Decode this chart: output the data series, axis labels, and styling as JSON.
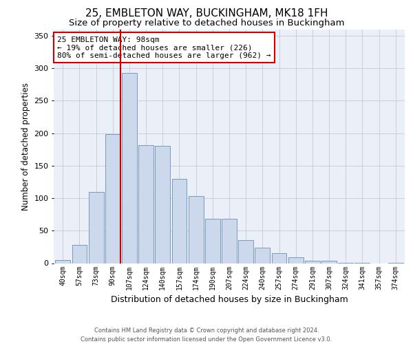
{
  "title1": "25, EMBLETON WAY, BUCKINGHAM, MK18 1FH",
  "title2": "Size of property relative to detached houses in Buckingham",
  "xlabel": "Distribution of detached houses by size in Buckingham",
  "ylabel": "Number of detached properties",
  "footer1": "Contains HM Land Registry data © Crown copyright and database right 2024.",
  "footer2": "Contains public sector information licensed under the Open Government Licence v3.0.",
  "categories": [
    "40sqm",
    "57sqm",
    "73sqm",
    "90sqm",
    "107sqm",
    "124sqm",
    "140sqm",
    "157sqm",
    "174sqm",
    "190sqm",
    "207sqm",
    "224sqm",
    "240sqm",
    "257sqm",
    "274sqm",
    "291sqm",
    "307sqm",
    "324sqm",
    "341sqm",
    "357sqm",
    "374sqm"
  ],
  "values": [
    5,
    28,
    110,
    198,
    293,
    182,
    181,
    130,
    103,
    68,
    68,
    35,
    24,
    15,
    9,
    4,
    4,
    1,
    1,
    0,
    1
  ],
  "bar_color": "#ccd9ed",
  "bar_edge_color": "#7799bb",
  "marker_color": "#cc0000",
  "annotation_text": "25 EMBLETON WAY: 98sqm\n← 19% of detached houses are smaller (226)\n80% of semi-detached houses are larger (962) →",
  "annotation_box_color": "#ffffff",
  "annotation_box_edge": "#cc0000",
  "ylim": [
    0,
    360
  ],
  "yticks": [
    0,
    50,
    100,
    150,
    200,
    250,
    300,
    350
  ],
  "grid_color": "#ccccdd",
  "axes_bg_color": "#eaeff8",
  "bg_color": "#ffffff",
  "title1_fontsize": 11,
  "title2_fontsize": 9.5,
  "annotation_fontsize": 8,
  "ylabel_fontsize": 8.5,
  "xlabel_fontsize": 9,
  "tick_fontsize": 7,
  "footer_fontsize": 6
}
